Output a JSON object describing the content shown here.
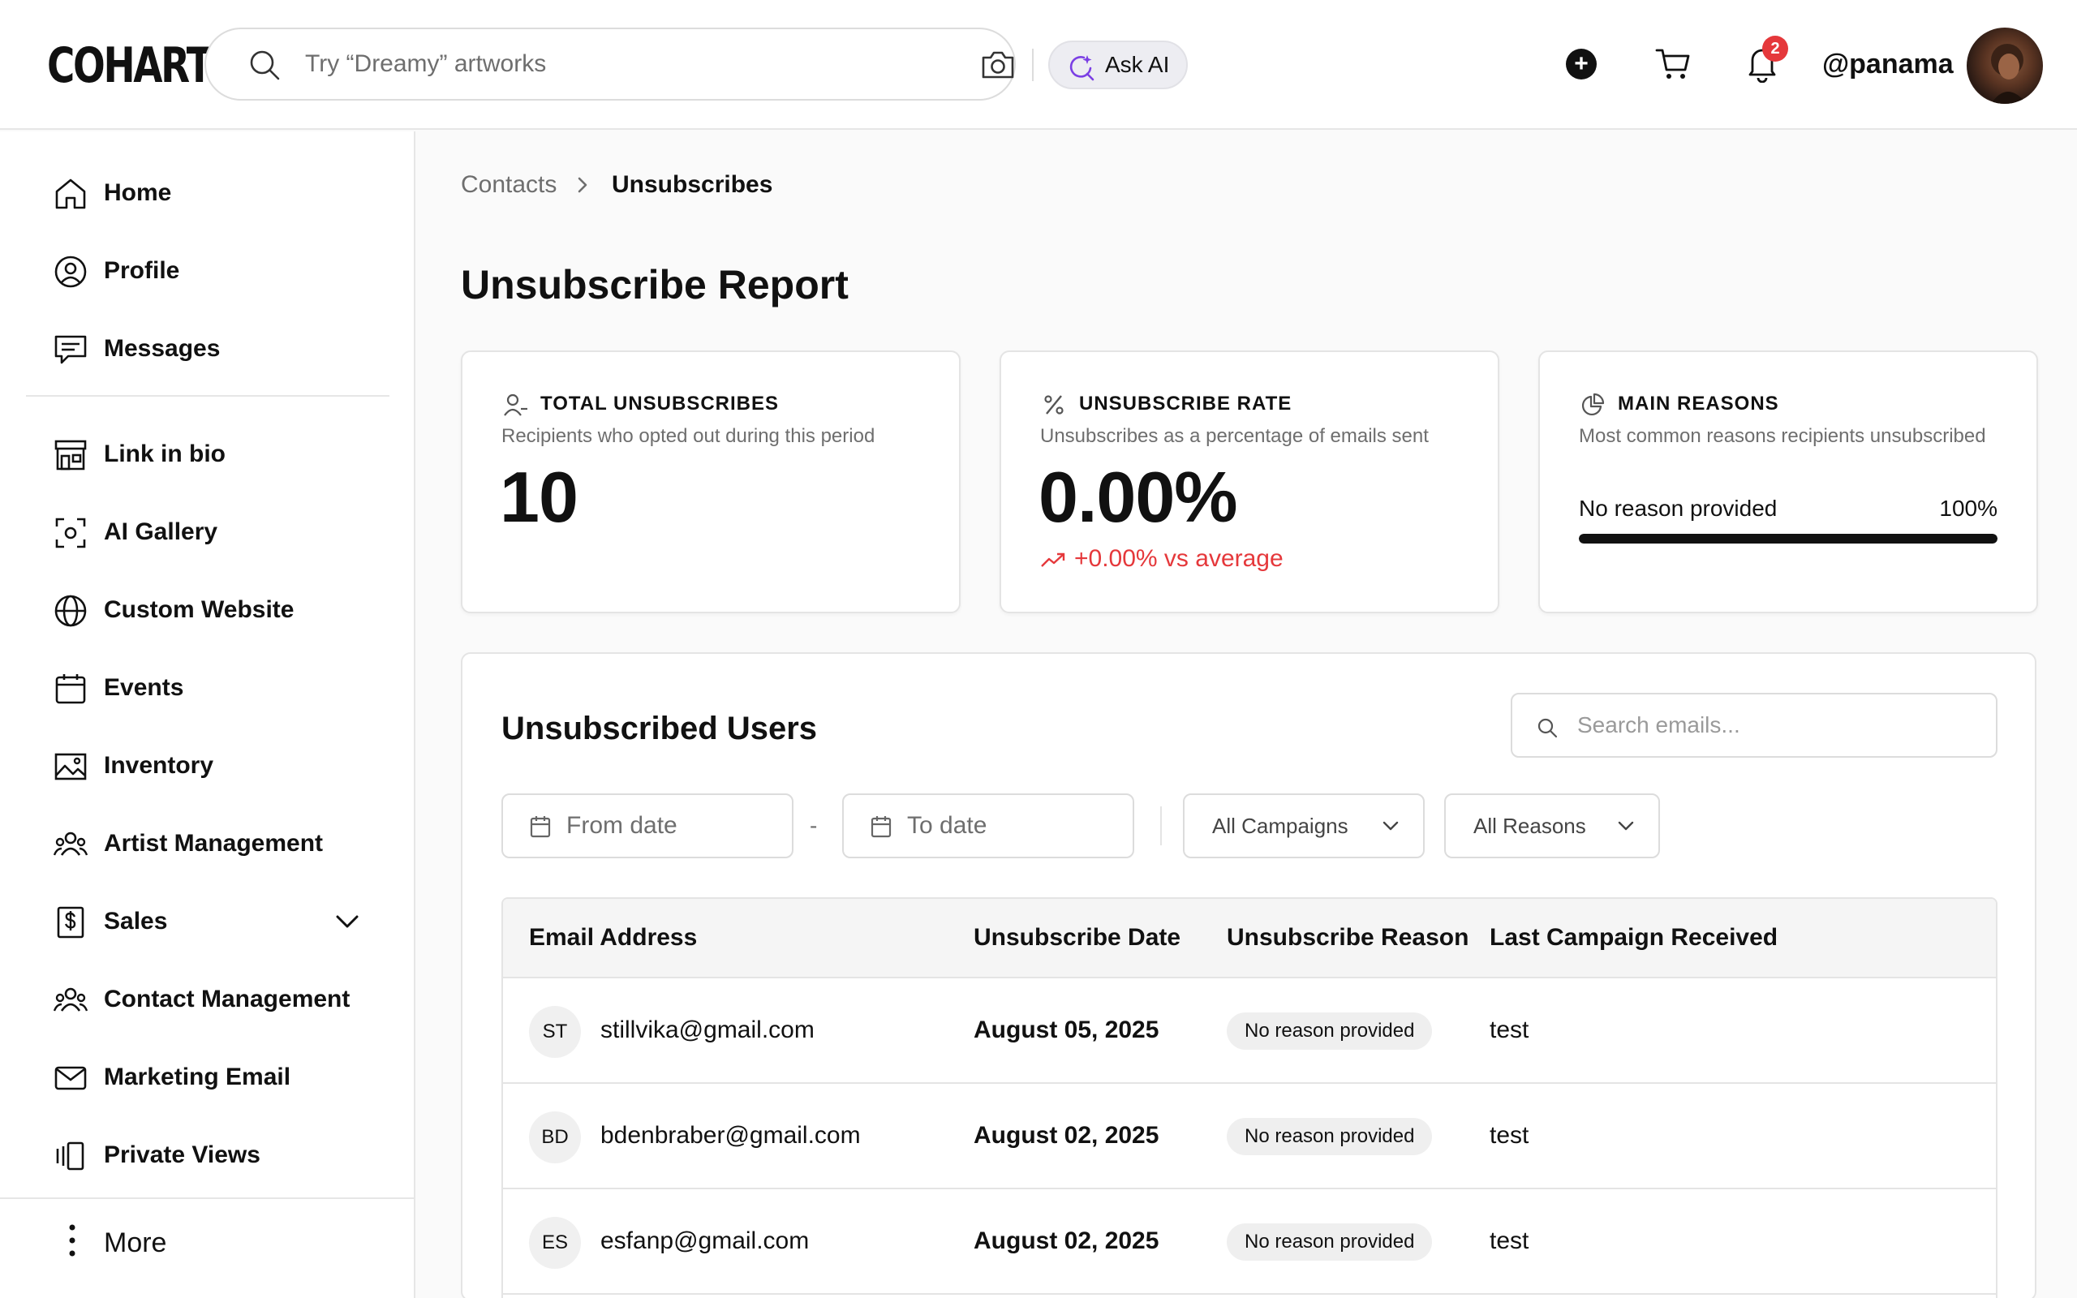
{
  "header": {
    "logo": "COHART",
    "search_placeholder": "Try “Dreamy” artworks",
    "ask_ai_label": "Ask AI",
    "notifications_count": "2",
    "username": "@panama"
  },
  "sidebar": {
    "items": [
      {
        "label": "Home",
        "icon": "home-icon"
      },
      {
        "label": "Profile",
        "icon": "user-circle-icon"
      },
      {
        "label": "Messages",
        "icon": "message-icon"
      },
      {
        "label": "Link in bio",
        "icon": "storefront-icon"
      },
      {
        "label": "AI Gallery",
        "icon": "scan-icon"
      },
      {
        "label": "Custom Website",
        "icon": "globe-icon"
      },
      {
        "label": "Events",
        "icon": "calendar-icon"
      },
      {
        "label": "Inventory",
        "icon": "image-icon"
      },
      {
        "label": "Artist Management",
        "icon": "users-icon"
      },
      {
        "label": "Sales",
        "icon": "dollar-doc-icon"
      },
      {
        "label": "Contact Management",
        "icon": "users-icon"
      },
      {
        "label": "Marketing Email",
        "icon": "mail-icon"
      },
      {
        "label": "Private Views",
        "icon": "gallery-views-icon"
      }
    ],
    "more_label": "More"
  },
  "breadcrumb": {
    "parent": "Contacts",
    "current": "Unsubscribes"
  },
  "page_title": "Unsubscribe Report",
  "cards": {
    "total": {
      "title": "TOTAL UNSUBSCRIBES",
      "subtitle": "Recipients who opted out during this period",
      "value": "10"
    },
    "rate": {
      "title": "UNSUBSCRIBE RATE",
      "subtitle": "Unsubscribes as a percentage of emails sent",
      "value": "0.00%",
      "trend": "+0.00% vs average",
      "trend_color": "#e5383b"
    },
    "reasons": {
      "title": "MAIN REASONS",
      "subtitle": "Most common reasons recipients unsubscribed",
      "reason_label": "No reason provided",
      "reason_percent": "100%",
      "reason_fraction": 1.0
    }
  },
  "users_panel": {
    "title": "Unsubscribed Users",
    "search_placeholder": "Search emails...",
    "from_date_placeholder": "From date",
    "to_date_placeholder": "To date",
    "date_separator": "-",
    "campaign_filter": "All Campaigns",
    "reason_filter": "All Reasons",
    "columns": [
      "Email Address",
      "Unsubscribe Date",
      "Unsubscribe Reason",
      "Last Campaign Received"
    ],
    "rows": [
      {
        "initials": "ST",
        "email": "stillvika@gmail.com",
        "date": "August 05, 2025",
        "reason": "No reason provided",
        "campaign": "test"
      },
      {
        "initials": "BD",
        "email": "bdenbraber@gmail.com",
        "date": "August 02, 2025",
        "reason": "No reason provided",
        "campaign": "test"
      },
      {
        "initials": "ES",
        "email": "esfanp@gmail.com",
        "date": "August 02, 2025",
        "reason": "No reason provided",
        "campaign": "test"
      }
    ]
  }
}
